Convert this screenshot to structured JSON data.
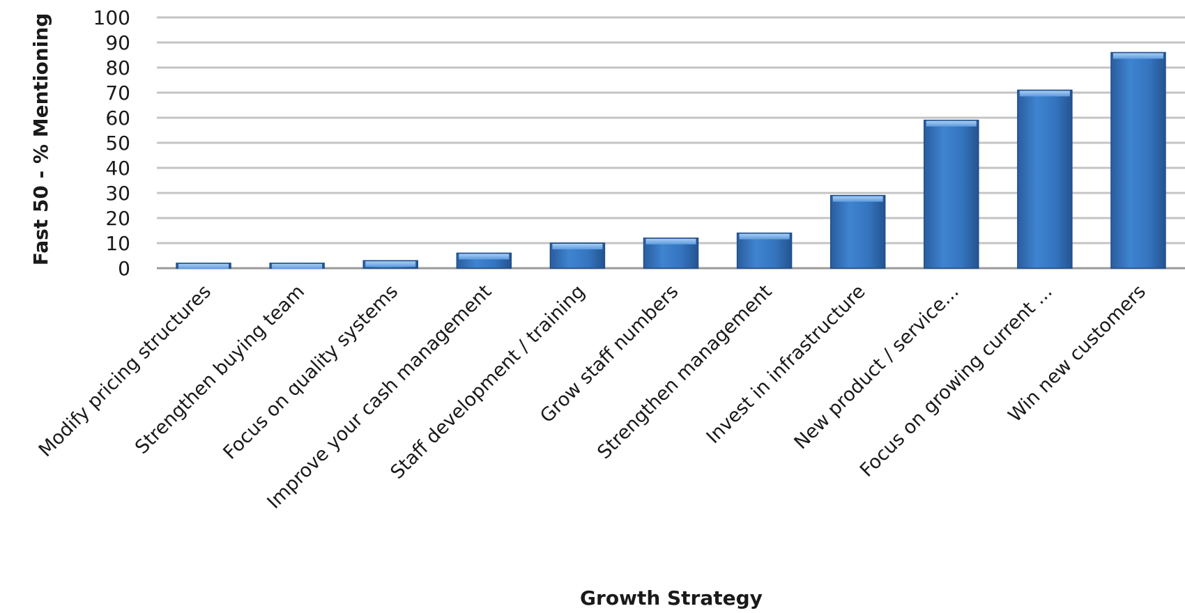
{
  "chart_data": {
    "type": "bar",
    "title": "",
    "xlabel": "Growth Strategy",
    "ylabel": "Fast 50 - % Mentioning",
    "ylim": [
      0,
      100
    ],
    "yticks": [
      0,
      10,
      20,
      30,
      40,
      50,
      60,
      70,
      80,
      90,
      100
    ],
    "grid": true,
    "legend": "none",
    "categories": [
      "Modify pricing structures",
      "Strengthen buying team",
      "Focus on quality systems",
      "Improve your cash management",
      "Staff development / training",
      "Grow staff numbers",
      "Strengthen management",
      "Invest in infrastructure",
      "New product / service...",
      "Focus on growing current ...",
      "Win new customers"
    ],
    "values": [
      2,
      2,
      3,
      6,
      10,
      12,
      14,
      29,
      59,
      71,
      86
    ],
    "bar_color": "#3a78c2"
  }
}
